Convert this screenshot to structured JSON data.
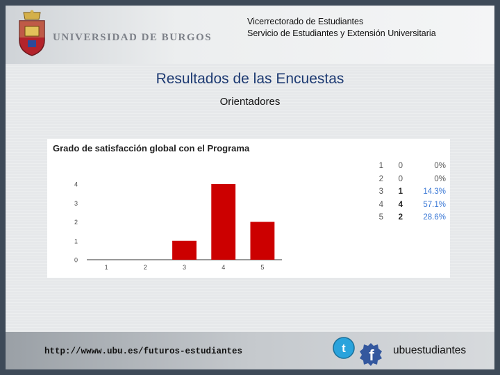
{
  "header": {
    "university": "UNIVERSIDAD DE BURGOS",
    "dept_line1": "Vicerrectorado de Estudiantes",
    "dept_line2": "Servicio de Estudiantes y Extensión Universitaria"
  },
  "page": {
    "title": "Resultados de las Encuestas",
    "subtitle": "Orientadores"
  },
  "chart_data": {
    "type": "bar",
    "title": "Grado de satisfacción global con el Programa",
    "categories": [
      "1",
      "2",
      "3",
      "4",
      "5"
    ],
    "values": [
      0,
      0,
      1,
      4,
      2
    ],
    "ylim": [
      0,
      4
    ],
    "yticks": [
      "0",
      "1",
      "2",
      "3",
      "4"
    ],
    "grid": false,
    "color": "#cc0000",
    "table": [
      {
        "option": "1",
        "count": "0",
        "percent": "0%"
      },
      {
        "option": "2",
        "count": "0",
        "percent": "0%"
      },
      {
        "option": "3",
        "count": "1",
        "percent": "14.3%"
      },
      {
        "option": "4",
        "count": "4",
        "percent": "57.1%"
      },
      {
        "option": "5",
        "count": "2",
        "percent": "28.6%"
      }
    ]
  },
  "footer": {
    "url": "http://wwww.ubu.es/futuros-estudiantes",
    "social_handle": "ubuestudiantes",
    "icons": [
      "twitter-icon",
      "facebook-icon"
    ]
  }
}
